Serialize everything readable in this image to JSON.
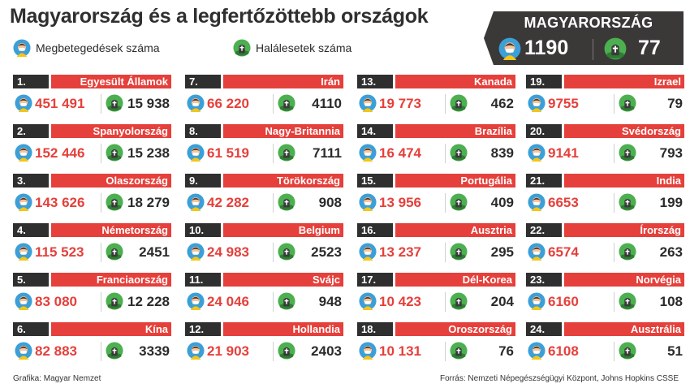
{
  "title": "Magyarország és a legfertőzöttebb országok",
  "legend": {
    "cases_label": "Megbetegedések száma",
    "deaths_label": "Halálesetek száma",
    "cases_icon": "patient-mask-icon",
    "deaths_icon": "grave-globe-icon"
  },
  "hungary": {
    "label": "MAGYARORSZÁG",
    "cases": "1190",
    "deaths": "77"
  },
  "colors": {
    "accent": "#e5403b",
    "dark": "#2f2f2f",
    "panel": "#3b3838"
  },
  "countries": [
    {
      "rank": "1.",
      "name": "Egyesült Államok",
      "cases": "451 491",
      "deaths": "15 938"
    },
    {
      "rank": "2.",
      "name": "Spanyolország",
      "cases": "152 446",
      "deaths": "15 238"
    },
    {
      "rank": "3.",
      "name": "Olaszország",
      "cases": "143 626",
      "deaths": "18 279"
    },
    {
      "rank": "4.",
      "name": "Németország",
      "cases": "115 523",
      "deaths": "2451"
    },
    {
      "rank": "5.",
      "name": "Franciaország",
      "cases": "83 080",
      "deaths": "12 228"
    },
    {
      "rank": "6.",
      "name": "Kína",
      "cases": "82 883",
      "deaths": "3339"
    },
    {
      "rank": "7.",
      "name": "Irán",
      "cases": "66 220",
      "deaths": "4110"
    },
    {
      "rank": "8.",
      "name": "Nagy-Britannia",
      "cases": "61 519",
      "deaths": "7111"
    },
    {
      "rank": "9.",
      "name": "Törökország",
      "cases": "42 282",
      "deaths": "908"
    },
    {
      "rank": "10.",
      "name": "Belgium",
      "cases": "24 983",
      "deaths": "2523"
    },
    {
      "rank": "11.",
      "name": "Svájc",
      "cases": "24 046",
      "deaths": "948"
    },
    {
      "rank": "12.",
      "name": "Hollandia",
      "cases": "21 903",
      "deaths": "2403"
    },
    {
      "rank": "13.",
      "name": "Kanada",
      "cases": "19 773",
      "deaths": "462"
    },
    {
      "rank": "14.",
      "name": "Brazília",
      "cases": "16 474",
      "deaths": "839"
    },
    {
      "rank": "15.",
      "name": "Portugália",
      "cases": "13 956",
      "deaths": "409"
    },
    {
      "rank": "16.",
      "name": "Ausztria",
      "cases": "13 237",
      "deaths": "295"
    },
    {
      "rank": "17.",
      "name": "Dél-Korea",
      "cases": "10 423",
      "deaths": "204"
    },
    {
      "rank": "18.",
      "name": "Oroszország",
      "cases": "10 131",
      "deaths": "76"
    },
    {
      "rank": "19.",
      "name": "Izrael",
      "cases": "9755",
      "deaths": "79"
    },
    {
      "rank": "20.",
      "name": "Svédország",
      "cases": "9141",
      "deaths": "793"
    },
    {
      "rank": "21.",
      "name": "India",
      "cases": "6653",
      "deaths": "199"
    },
    {
      "rank": "22.",
      "name": "Írország",
      "cases": "6574",
      "deaths": "263"
    },
    {
      "rank": "23.",
      "name": "Norvégia",
      "cases": "6160",
      "deaths": "108"
    },
    {
      "rank": "24.",
      "name": "Ausztrália",
      "cases": "6108",
      "deaths": "51"
    }
  ],
  "footer": {
    "credit": "Grafika: Magyar Nemzet",
    "source": "Forrás: Nemzeti Népegészségügyi Központ, Johns Hopkins CSSE"
  }
}
